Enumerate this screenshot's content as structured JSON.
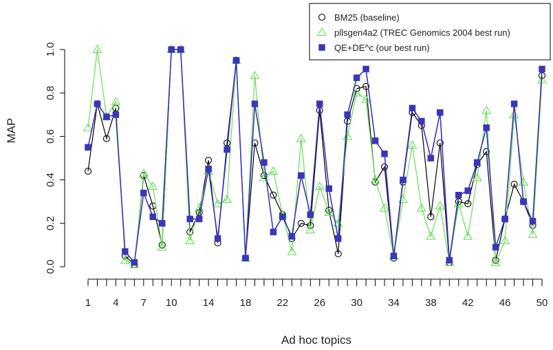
{
  "chart_data": {
    "type": "line",
    "xlabel": "Ad hoc topics",
    "ylabel": "MAP",
    "x": [
      1,
      2,
      3,
      4,
      5,
      6,
      7,
      8,
      9,
      10,
      11,
      12,
      13,
      14,
      15,
      16,
      17,
      18,
      19,
      20,
      21,
      22,
      23,
      24,
      25,
      26,
      27,
      28,
      29,
      30,
      31,
      32,
      33,
      34,
      35,
      36,
      37,
      38,
      39,
      40,
      41,
      42,
      43,
      44,
      45,
      46,
      47,
      48,
      49,
      50
    ],
    "x_tick_labels": [
      "1",
      "4",
      "7",
      "10",
      "14",
      "18",
      "22",
      "26",
      "30",
      "34",
      "38",
      "42",
      "46",
      "50"
    ],
    "x_tick_label_positions": [
      1,
      4,
      7,
      10,
      14,
      18,
      22,
      26,
      30,
      34,
      38,
      42,
      46,
      50
    ],
    "y_ticks": [
      "0.0",
      "0.2",
      "0.4",
      "0.6",
      "0.8",
      "1.0"
    ],
    "ylim": [
      0,
      1
    ],
    "legend_position": "top-right",
    "series": [
      {
        "name": "BM25 (baseline)",
        "marker": "circle-open",
        "color": "#000000",
        "values": [
          0.44,
          0.75,
          0.59,
          0.73,
          0.05,
          0.01,
          0.42,
          0.28,
          0.1,
          1.0,
          1.0,
          0.16,
          0.25,
          0.49,
          0.11,
          0.57,
          0.95,
          0.04,
          0.57,
          0.42,
          0.33,
          0.24,
          0.13,
          0.2,
          0.19,
          0.72,
          0.26,
          0.06,
          0.67,
          0.82,
          0.83,
          0.39,
          0.46,
          0.04,
          0.39,
          0.71,
          0.65,
          0.23,
          0.57,
          0.02,
          0.3,
          0.29,
          0.47,
          0.53,
          0.03,
          0.22,
          0.38,
          0.3,
          0.19,
          0.88
        ]
      },
      {
        "name": "pllsgen4a2 (TREC Genomics 2004 best run)",
        "marker": "triangle-open",
        "color": "#66dd55",
        "values": [
          0.64,
          1.0,
          0.69,
          0.76,
          0.03,
          0.01,
          0.43,
          0.37,
          0.09,
          1.0,
          1.0,
          0.12,
          0.27,
          0.44,
          0.29,
          0.31,
          0.95,
          0.04,
          0.88,
          0.41,
          0.44,
          0.24,
          0.07,
          0.59,
          0.17,
          0.37,
          0.25,
          0.2,
          0.6,
          0.8,
          0.77,
          0.4,
          0.27,
          0.05,
          0.31,
          0.56,
          0.27,
          0.14,
          0.28,
          0.02,
          0.29,
          0.14,
          0.41,
          0.72,
          0.02,
          0.12,
          0.7,
          0.39,
          0.15,
          0.86
        ]
      },
      {
        "name": "QE+DE^c (our best run)",
        "marker": "square-filled",
        "color": "#3a36b8",
        "values": [
          0.55,
          0.75,
          0.69,
          0.7,
          0.07,
          0.02,
          0.34,
          0.23,
          0.2,
          1.0,
          1.0,
          0.22,
          0.22,
          0.45,
          0.13,
          0.54,
          0.95,
          0.04,
          0.75,
          0.48,
          0.16,
          0.23,
          0.14,
          0.42,
          0.24,
          0.75,
          0.36,
          0.13,
          0.7,
          0.87,
          0.91,
          0.58,
          0.52,
          0.05,
          0.4,
          0.73,
          0.67,
          0.5,
          0.71,
          0.03,
          0.33,
          0.35,
          0.48,
          0.64,
          0.09,
          0.22,
          0.75,
          0.3,
          0.21,
          0.91
        ]
      }
    ]
  }
}
